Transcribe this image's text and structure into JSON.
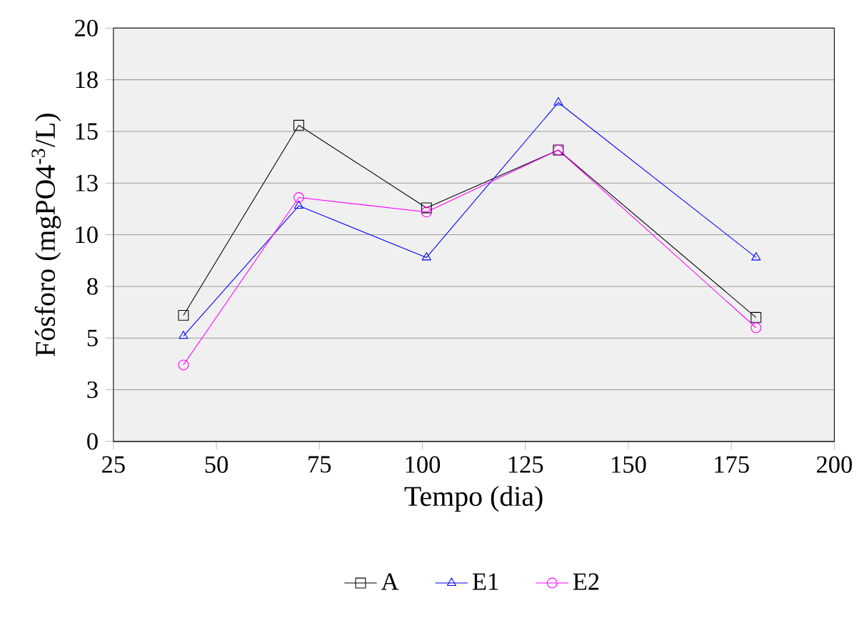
{
  "chart_data": {
    "type": "line",
    "xlabel": "Tempo (dia)",
    "ylabel": "Fósforo (mgPO4$^{-3}$/L)",
    "x": [
      42,
      70,
      101,
      133,
      181
    ],
    "series": [
      {
        "name": "A",
        "color": "#000000",
        "marker": "square",
        "values": [
          6.1,
          15.3,
          11.3,
          14.1,
          6.0
        ]
      },
      {
        "name": "E1",
        "color": "#0000ff",
        "marker": "triangle",
        "values": [
          5.1,
          11.4,
          8.9,
          16.4,
          8.9
        ]
      },
      {
        "name": "E2",
        "color": "#ff00ff",
        "marker": "circle",
        "values": [
          3.7,
          11.8,
          11.1,
          14.1,
          5.5
        ]
      }
    ],
    "xlim": [
      25,
      200
    ],
    "xticks": [
      25,
      50,
      75,
      100,
      125,
      150,
      175,
      200
    ],
    "ylim": [
      0,
      20
    ],
    "yticks": [
      0,
      {
        "value": 2.5,
        "label": "3"
      },
      5,
      {
        "value": 7.5,
        "label": "8"
      },
      10,
      {
        "value": 12.5,
        "label": "13"
      },
      15,
      {
        "value": 17.5,
        "label": "18"
      },
      20
    ],
    "grid": "y",
    "legend": "bottom",
    "line_style": "solid"
  }
}
